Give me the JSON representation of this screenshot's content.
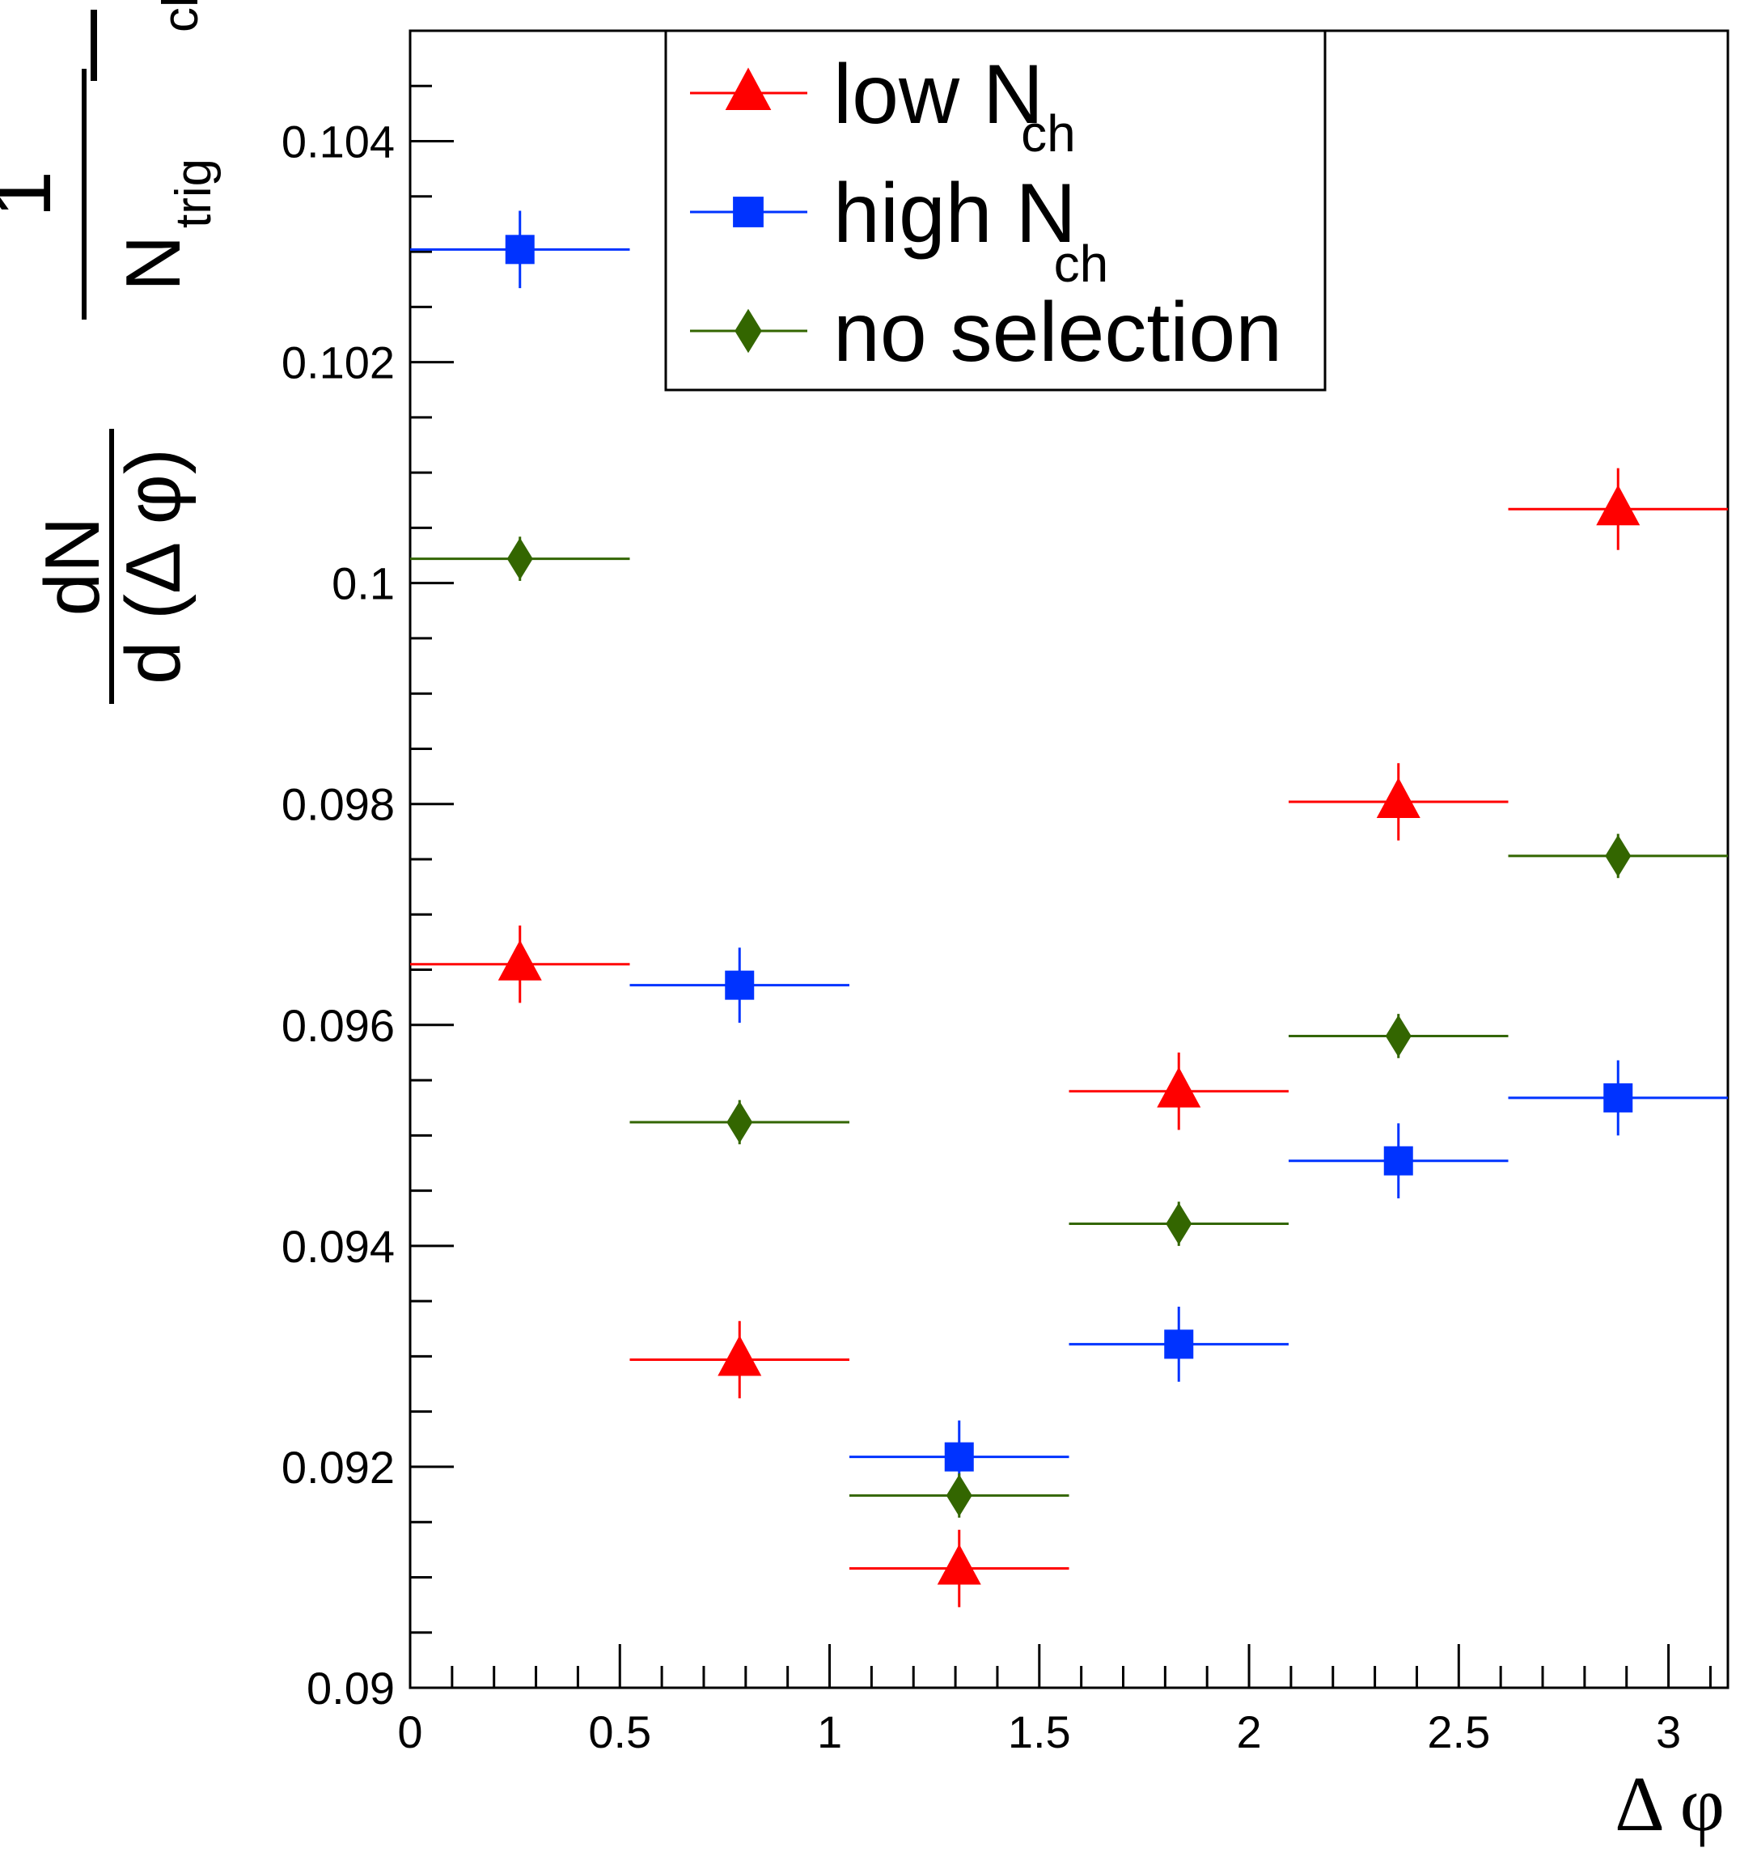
{
  "chart_data": {
    "type": "scatter",
    "title": "",
    "xlabel": "Δ φ",
    "ylabel": {
      "numerator": "dN",
      "denominator": "d (Δ φ)",
      "prefactor": "1",
      "prefactor_denominator": "N",
      "prefactor_sub": "trig",
      "class_sub": "class"
    },
    "xlim": [
      0,
      3.1416
    ],
    "ylim": [
      0.09,
      0.105
    ],
    "x_ticks": [
      "0",
      "0.5",
      "1",
      "1.5",
      "2",
      "2.5",
      "3"
    ],
    "x_tick_values": [
      0,
      0.5,
      1,
      1.5,
      2,
      2.5,
      3
    ],
    "y_ticks": [
      "0.09",
      "0.092",
      "0.094",
      "0.096",
      "0.098",
      "0.1",
      "0.102",
      "0.104"
    ],
    "y_tick_values": [
      0.09,
      0.092,
      0.094,
      0.096,
      0.098,
      0.1,
      0.102,
      0.104
    ],
    "bins": [
      [
        0,
        0.5236
      ],
      [
        0.5236,
        1.0472
      ],
      [
        1.0472,
        1.5708
      ],
      [
        1.5708,
        2.0944
      ],
      [
        2.0944,
        2.618
      ],
      [
        2.618,
        3.1416
      ]
    ],
    "x": [
      0.2618,
      0.7854,
      1.309,
      1.8326,
      2.3562,
      2.8798
    ],
    "series": [
      {
        "name": "low N",
        "name_sub": "ch",
        "color": "#ff0000",
        "marker": "triangle",
        "values": [
          0.09655,
          0.09297,
          0.09108,
          0.0954,
          0.09802,
          0.10067
        ],
        "errors": [
          0.00035,
          0.00035,
          0.00035,
          0.00035,
          0.00035,
          0.00037
        ]
      },
      {
        "name": "high N",
        "name_sub": "ch",
        "color": "#0033ff",
        "marker": "square",
        "values": [
          0.10302,
          0.09636,
          0.09209,
          0.09311,
          0.09477,
          0.09534
        ],
        "errors": [
          0.00035,
          0.00034,
          0.00033,
          0.00034,
          0.00034,
          0.00034
        ]
      },
      {
        "name": "no selection",
        "name_sub": "",
        "color": "#336600",
        "marker": "diamond",
        "values": [
          0.10022,
          0.09512,
          0.09174,
          0.0942,
          0.0959,
          0.09753
        ],
        "errors": [
          0.0002,
          0.0002,
          0.0002,
          0.0002,
          0.0002,
          0.0002
        ]
      }
    ],
    "legend_position": "top-center"
  }
}
